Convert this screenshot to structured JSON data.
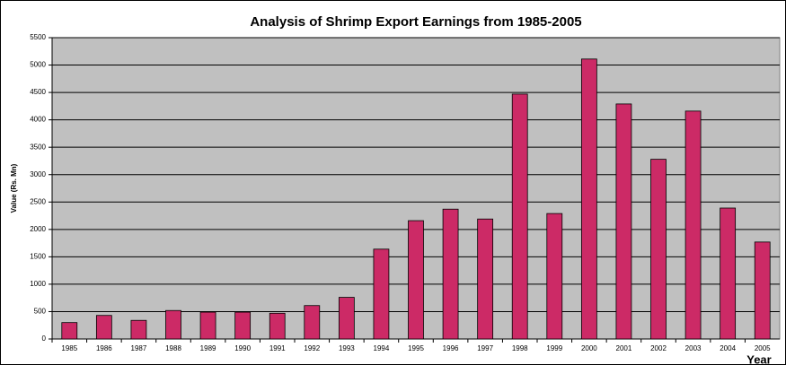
{
  "chart_data": {
    "type": "bar",
    "title": "Analysis of Shrimp Export Earnings from 1985-2005",
    "x_label": "Year",
    "y_label": "Value (Rs. Mn)",
    "categories": [
      "1985",
      "1986",
      "1987",
      "1988",
      "1989",
      "1990",
      "1991",
      "1992",
      "1993",
      "1994",
      "1995",
      "1996",
      "1997",
      "1998",
      "1999",
      "2000",
      "2001",
      "2002",
      "2003",
      "2004",
      "2005"
    ],
    "values": [
      300,
      430,
      340,
      520,
      490,
      490,
      470,
      610,
      760,
      1640,
      2160,
      2370,
      2190,
      4470,
      2290,
      5110,
      4290,
      3280,
      4160,
      2390,
      1770
    ],
    "color": "#cc2a66",
    "ylim": [
      0,
      5500
    ],
    "yticks": [
      0,
      500,
      1000,
      1500,
      2000,
      2500,
      3000,
      3500,
      4000,
      4500,
      5000,
      5500
    ],
    "grid": true
  }
}
